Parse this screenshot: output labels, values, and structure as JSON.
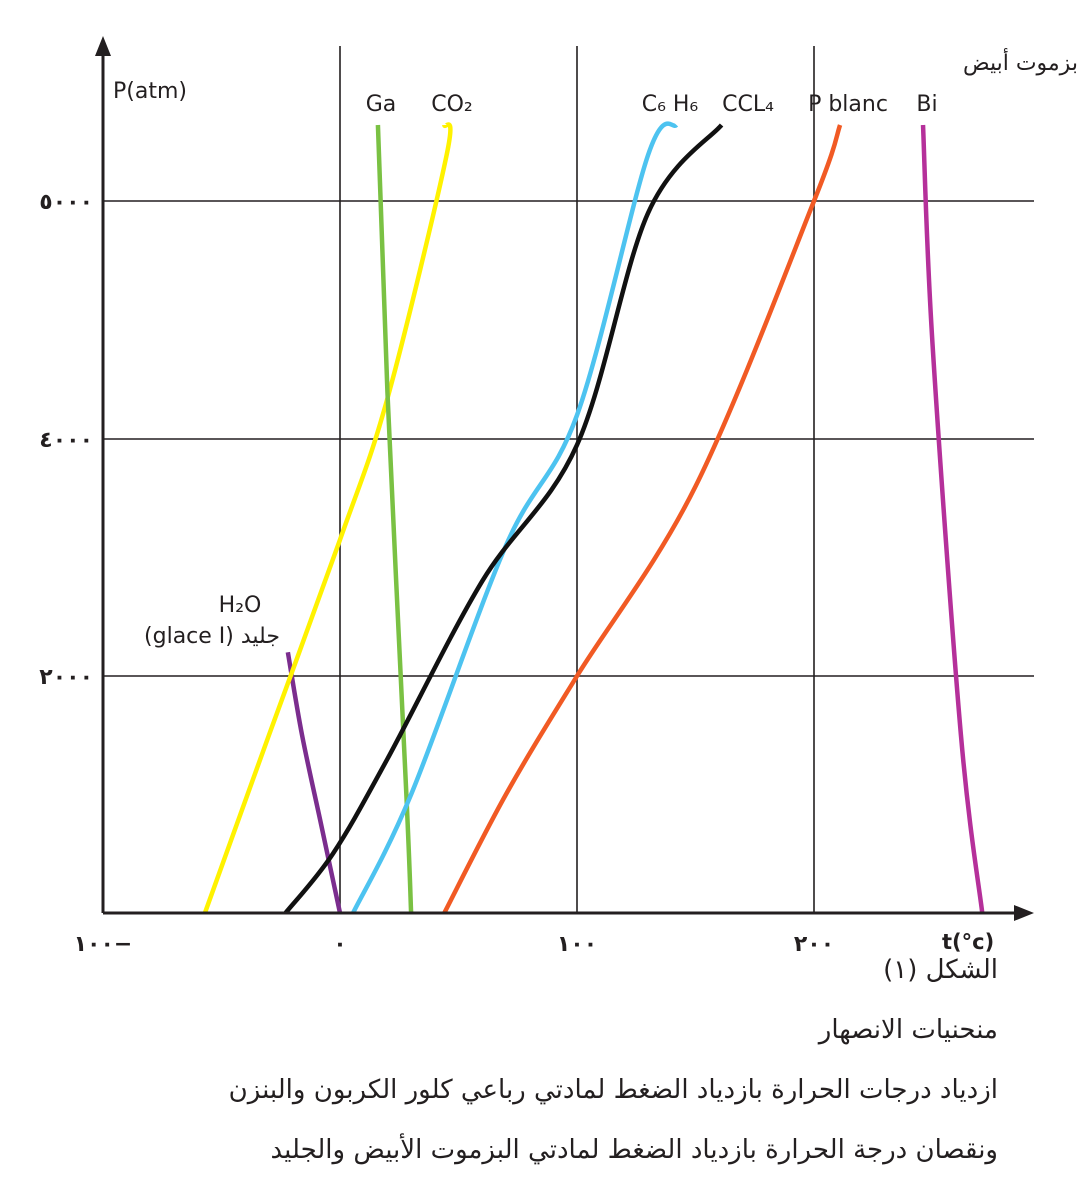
{
  "chart_data": {
    "type": "line",
    "ylabel": "P(atm)",
    "xlabel": "t(°c)",
    "x_ticks": [
      {
        "value": -100,
        "label": "١٠٠−"
      },
      {
        "value": 0,
        "label": "٠"
      },
      {
        "value": 100,
        "label": "١٠٠"
      },
      {
        "value": 200,
        "label": "٢٠٠"
      }
    ],
    "y_ticks": [
      {
        "value": 2000,
        "label": "٢٠٠٠"
      },
      {
        "value": 4000,
        "label": "٤٠٠٠"
      },
      {
        "value": 5000,
        "label": "٥٠٠٠"
      }
    ],
    "xlim": [
      -100,
      275
    ],
    "y_scale_note": "non-linear (ticks 2000, 4000, 5000 equally spaced)",
    "grid": true,
    "series": [
      {
        "key": "h2o",
        "name": "H₂O",
        "name_extra": "(glace I) جليد",
        "color": "#7b2d8e",
        "points": [
          [
            -22,
            2200
          ],
          [
            -16,
            1500
          ],
          [
            -8,
            750
          ],
          [
            0,
            0
          ]
        ]
      },
      {
        "key": "co2",
        "name": "CO₂",
        "color": "#fff200",
        "points": [
          [
            -57,
            0
          ],
          [
            -30,
            1500
          ],
          [
            0,
            3150
          ],
          [
            20,
            4170
          ],
          [
            45,
            5200
          ],
          [
            44,
            5330
          ]
        ]
      },
      {
        "key": "ga",
        "name": "Ga",
        "color": "#7ac143",
        "points": [
          [
            30,
            0
          ],
          [
            28,
            1000
          ],
          [
            20,
            4200
          ],
          [
            16,
            5330
          ]
        ]
      },
      {
        "key": "c6h6",
        "name": "C₆ H₆",
        "color": "#4dc3f0",
        "points": [
          [
            5.5,
            0
          ],
          [
            30,
            1000
          ],
          [
            70,
            3100
          ],
          [
            100,
            4100
          ],
          [
            130,
            5200
          ],
          [
            142,
            5330
          ]
        ]
      },
      {
        "key": "ccl4",
        "name": "CCL₄",
        "color": "#111111",
        "points": [
          [
            -23,
            0
          ],
          [
            -3,
            500
          ],
          [
            20,
            1300
          ],
          [
            60,
            2800
          ],
          [
            100,
            3950
          ],
          [
            130,
            4950
          ],
          [
            161,
            5330
          ]
        ]
      },
      {
        "key": "pblanc",
        "name": "P blanc",
        "color": "#f15a24",
        "points": [
          [
            44,
            0
          ],
          [
            70,
            1000
          ],
          [
            100,
            2000
          ],
          [
            150,
            3600
          ],
          [
            200,
            5000
          ],
          [
            211,
            5330
          ]
        ]
      },
      {
        "key": "bi",
        "name": "Bi",
        "color": "#b5309a",
        "points": [
          [
            271,
            0
          ],
          [
            262,
            1500
          ],
          [
            250,
            4400
          ],
          [
            246,
            5330
          ]
        ]
      }
    ],
    "series_label_extra": "بزموت أبيض"
  },
  "caption": {
    "figure": "الشكل (١)",
    "title": "منحنيات الانصهار",
    "line1": "ازدياد درجات الحرارة بازدياد الضغط لمادتي رباعي كلور الكربون والبنزن",
    "line2": "ونقصان  درجة الحرارة بازدياد الضغط لمادتي البزموت الأبيض والجليد"
  }
}
